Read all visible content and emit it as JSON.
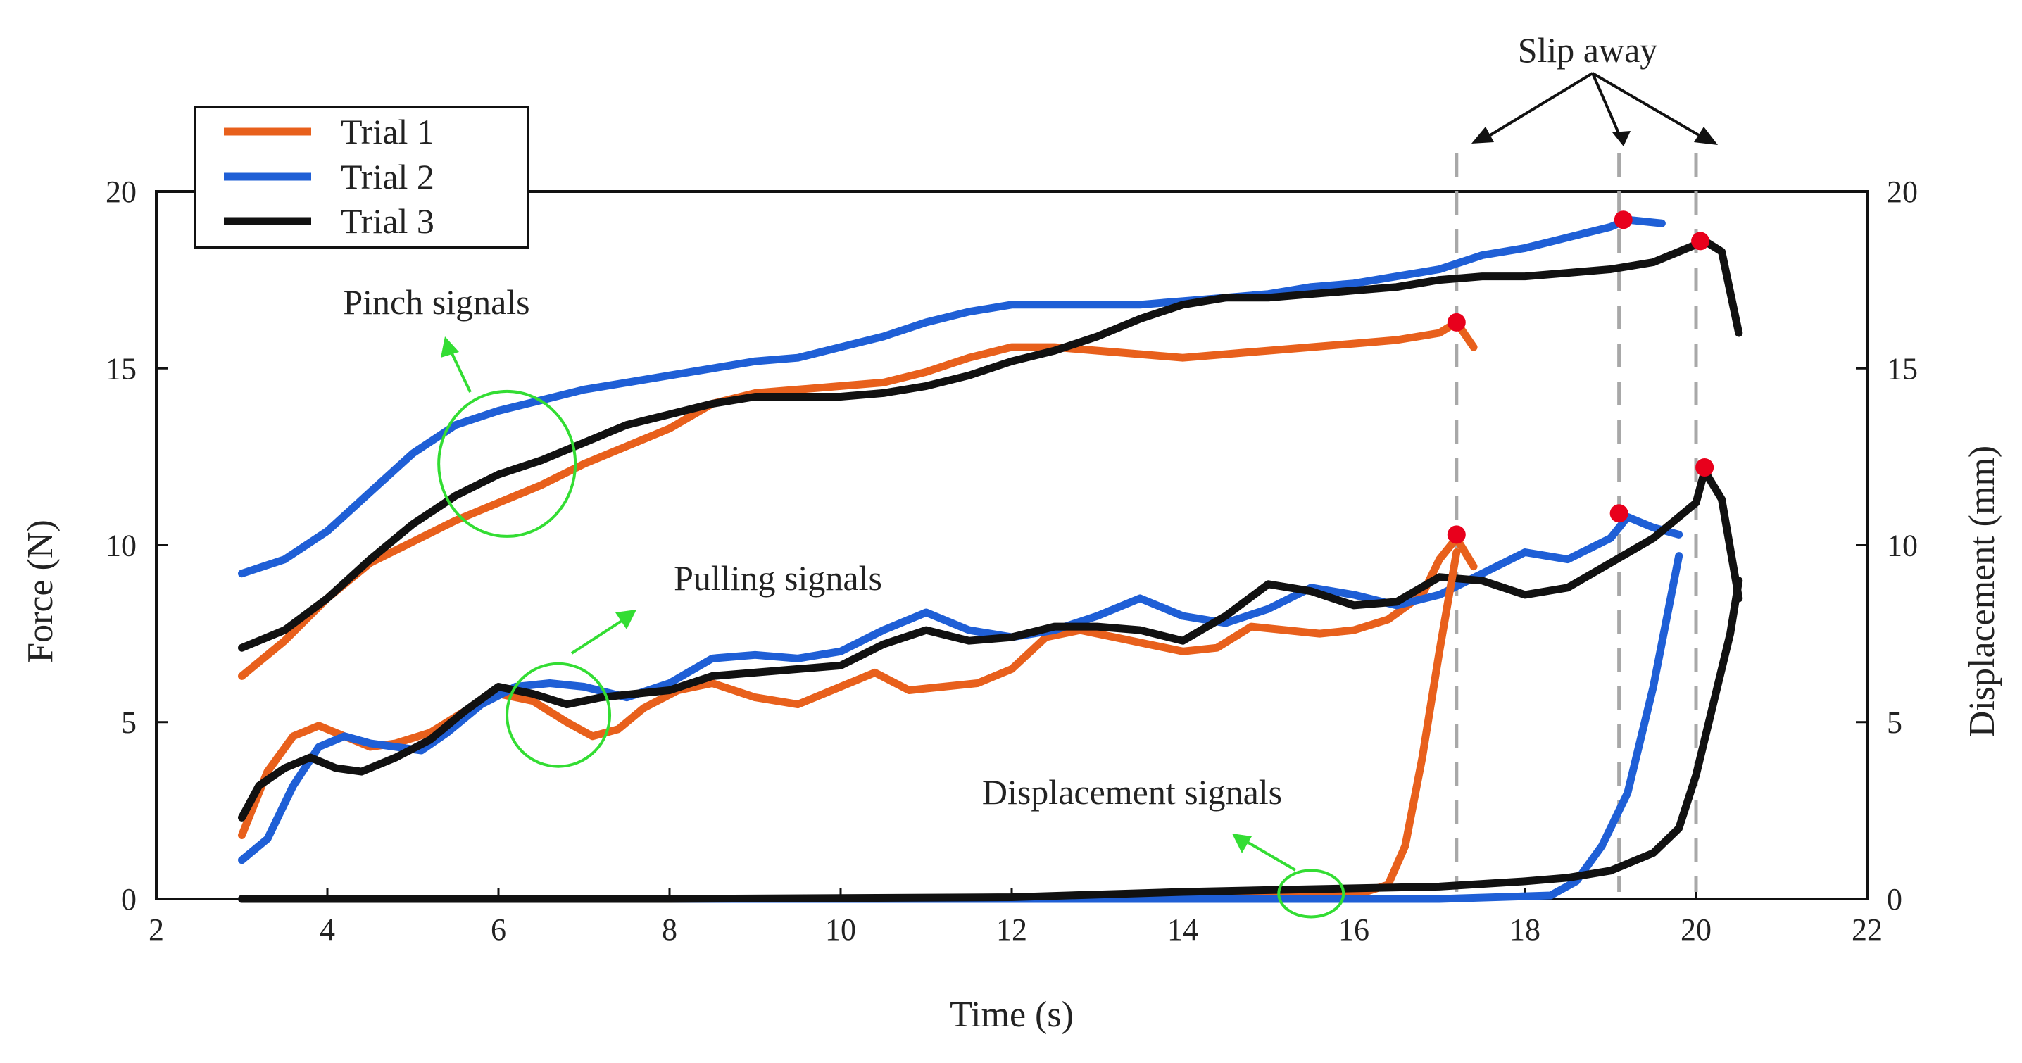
{
  "chart_data": {
    "type": "line",
    "xlabel": "Time (s)",
    "ylabel_left": "Force (N)",
    "ylabel_right": "Displacement (mm)",
    "xlim": [
      2,
      22
    ],
    "ylim_left": [
      0,
      20
    ],
    "ylim_right": [
      0,
      20
    ],
    "x_ticks": [
      2,
      4,
      6,
      8,
      10,
      12,
      14,
      16,
      18,
      20,
      22
    ],
    "y_ticks_left": [
      0,
      5,
      10,
      15,
      20
    ],
    "y_ticks_right": [
      0,
      5,
      10,
      15,
      20
    ],
    "legend": {
      "position": "top-left",
      "entries": [
        {
          "label": "Trial 1",
          "color": "#E8601C"
        },
        {
          "label": "Trial 2",
          "color": "#1F5FD6"
        },
        {
          "label": "Trial 3",
          "color": "#111111"
        }
      ]
    },
    "series": [
      {
        "name": "Trial 1 pinch",
        "group": "Pinch signals",
        "color": "#E8601C",
        "x": [
          3.0,
          3.5,
          4.0,
          4.5,
          5.0,
          5.5,
          6.0,
          6.5,
          7.0,
          7.5,
          8.0,
          8.5,
          9.0,
          9.5,
          10.0,
          10.5,
          11.0,
          11.5,
          12.0,
          12.5,
          13.0,
          13.5,
          14.0,
          14.5,
          15.0,
          15.5,
          16.0,
          16.5,
          17.0,
          17.2,
          17.4
        ],
        "y": [
          6.3,
          7.3,
          8.5,
          9.5,
          10.1,
          10.7,
          11.2,
          11.7,
          12.3,
          12.8,
          13.3,
          14.0,
          14.3,
          14.4,
          14.5,
          14.6,
          14.9,
          15.3,
          15.6,
          15.6,
          15.5,
          15.4,
          15.3,
          15.4,
          15.5,
          15.6,
          15.7,
          15.8,
          16.0,
          16.3,
          15.6
        ]
      },
      {
        "name": "Trial 2 pinch",
        "group": "Pinch signals",
        "color": "#1F5FD6",
        "x": [
          3.0,
          3.5,
          4.0,
          4.5,
          5.0,
          5.5,
          6.0,
          6.5,
          7.0,
          7.5,
          8.0,
          8.5,
          9.0,
          9.5,
          10.0,
          10.5,
          11.0,
          11.5,
          12.0,
          12.5,
          13.0,
          13.5,
          14.0,
          14.5,
          15.0,
          15.5,
          16.0,
          16.5,
          17.0,
          17.5,
          18.0,
          18.5,
          19.0,
          19.2,
          19.6
        ],
        "y": [
          9.2,
          9.6,
          10.4,
          11.5,
          12.6,
          13.4,
          13.8,
          14.1,
          14.4,
          14.6,
          14.8,
          15.0,
          15.2,
          15.3,
          15.6,
          15.9,
          16.3,
          16.6,
          16.8,
          16.8,
          16.8,
          16.8,
          16.9,
          17.0,
          17.1,
          17.3,
          17.4,
          17.6,
          17.8,
          18.2,
          18.4,
          18.7,
          19.0,
          19.2,
          19.1
        ]
      },
      {
        "name": "Trial 3 pinch",
        "group": "Pinch signals",
        "color": "#111111",
        "x": [
          3.0,
          3.5,
          4.0,
          4.5,
          5.0,
          5.5,
          6.0,
          6.5,
          7.0,
          7.5,
          8.0,
          8.5,
          9.0,
          9.5,
          10.0,
          10.5,
          11.0,
          11.5,
          12.0,
          12.5,
          13.0,
          13.5,
          14.0,
          14.5,
          15.0,
          15.5,
          16.0,
          16.5,
          17.0,
          17.5,
          18.0,
          18.5,
          19.0,
          19.5,
          20.0,
          20.1,
          20.3,
          20.5
        ],
        "y": [
          7.1,
          7.6,
          8.5,
          9.6,
          10.6,
          11.4,
          12.0,
          12.4,
          12.9,
          13.4,
          13.7,
          14.0,
          14.2,
          14.2,
          14.2,
          14.3,
          14.5,
          14.8,
          15.2,
          15.5,
          15.9,
          16.4,
          16.8,
          17.0,
          17.0,
          17.1,
          17.2,
          17.3,
          17.5,
          17.6,
          17.6,
          17.7,
          17.8,
          18.0,
          18.5,
          18.6,
          18.3,
          16.0
        ]
      },
      {
        "name": "Trial 1 pulling",
        "group": "Pulling signals",
        "color": "#E8601C",
        "x": [
          3.0,
          3.3,
          3.6,
          3.9,
          4.2,
          4.5,
          4.8,
          5.2,
          5.6,
          6.0,
          6.4,
          6.8,
          7.1,
          7.4,
          7.7,
          8.1,
          8.5,
          9.0,
          9.5,
          10.0,
          10.4,
          10.8,
          11.2,
          11.6,
          12.0,
          12.4,
          12.8,
          13.2,
          13.6,
          14.0,
          14.4,
          14.8,
          15.2,
          15.6,
          16.0,
          16.4,
          16.8,
          17.0,
          17.2,
          17.4
        ],
        "y": [
          1.8,
          3.6,
          4.6,
          4.9,
          4.6,
          4.3,
          4.4,
          4.7,
          5.3,
          5.8,
          5.6,
          5.0,
          4.6,
          4.8,
          5.4,
          5.9,
          6.1,
          5.7,
          5.5,
          6.0,
          6.4,
          5.9,
          6.0,
          6.1,
          6.5,
          7.4,
          7.6,
          7.4,
          7.2,
          7.0,
          7.1,
          7.7,
          7.6,
          7.5,
          7.6,
          7.9,
          8.6,
          9.6,
          10.2,
          9.4
        ]
      },
      {
        "name": "Trial 2 pulling",
        "group": "Pulling signals",
        "color": "#1F5FD6",
        "x": [
          3.0,
          3.3,
          3.6,
          3.9,
          4.2,
          4.5,
          4.8,
          5.1,
          5.4,
          5.8,
          6.2,
          6.6,
          7.0,
          7.5,
          8.0,
          8.5,
          9.0,
          9.5,
          10.0,
          10.5,
          11.0,
          11.5,
          12.0,
          12.5,
          13.0,
          13.5,
          14.0,
          14.5,
          15.0,
          15.5,
          16.0,
          16.5,
          17.0,
          17.5,
          18.0,
          18.5,
          19.0,
          19.2,
          19.5,
          19.8
        ],
        "y": [
          1.1,
          1.7,
          3.2,
          4.3,
          4.6,
          4.4,
          4.3,
          4.2,
          4.7,
          5.5,
          6.0,
          6.1,
          6.0,
          5.7,
          6.1,
          6.8,
          6.9,
          6.8,
          7.0,
          7.6,
          8.1,
          7.6,
          7.4,
          7.6,
          8.0,
          8.5,
          8.0,
          7.8,
          8.2,
          8.8,
          8.6,
          8.3,
          8.6,
          9.2,
          9.8,
          9.6,
          10.2,
          10.8,
          10.5,
          10.3
        ]
      },
      {
        "name": "Trial 3 pulling",
        "group": "Pulling signals",
        "color": "#111111",
        "x": [
          3.0,
          3.2,
          3.5,
          3.8,
          4.1,
          4.4,
          4.8,
          5.2,
          5.6,
          6.0,
          6.4,
          6.8,
          7.2,
          7.6,
          8.0,
          8.5,
          9.0,
          9.5,
          10.0,
          10.5,
          11.0,
          11.5,
          12.0,
          12.5,
          13.0,
          13.5,
          14.0,
          14.5,
          15.0,
          15.5,
          16.0,
          16.5,
          17.0,
          17.5,
          18.0,
          18.5,
          19.0,
          19.5,
          20.0,
          20.1,
          20.3,
          20.5
        ],
        "y": [
          2.3,
          3.2,
          3.7,
          4.0,
          3.7,
          3.6,
          4.0,
          4.5,
          5.3,
          6.0,
          5.8,
          5.5,
          5.7,
          5.8,
          5.9,
          6.3,
          6.4,
          6.5,
          6.6,
          7.2,
          7.6,
          7.3,
          7.4,
          7.7,
          7.7,
          7.6,
          7.3,
          8.0,
          8.9,
          8.7,
          8.3,
          8.4,
          9.1,
          9.0,
          8.6,
          8.8,
          9.5,
          10.2,
          11.2,
          12.1,
          11.3,
          8.5
        ]
      },
      {
        "name": "Trial 1 displacement",
        "group": "Displacement signals",
        "color": "#E8601C",
        "x": [
          3.0,
          5.0,
          8.0,
          11.0,
          14.0,
          16.0,
          16.4,
          16.6,
          16.8,
          17.0,
          17.2
        ],
        "y": [
          0.0,
          0.0,
          0.0,
          0.0,
          0.05,
          0.1,
          0.4,
          1.5,
          4.0,
          7.0,
          9.8
        ]
      },
      {
        "name": "Trial 2 displacement",
        "group": "Displacement signals",
        "color": "#1F5FD6",
        "x": [
          3.0,
          6.0,
          10.0,
          14.0,
          17.0,
          18.3,
          18.6,
          18.9,
          19.2,
          19.5,
          19.8
        ],
        "y": [
          0.0,
          0.0,
          0.0,
          0.0,
          0.0,
          0.1,
          0.5,
          1.5,
          3.0,
          6.0,
          9.7
        ]
      },
      {
        "name": "Trial 3 displacement",
        "group": "Displacement signals",
        "color": "#111111",
        "x": [
          3.0,
          8.0,
          12.0,
          14.0,
          15.0,
          16.0,
          17.0,
          18.0,
          18.5,
          19.0,
          19.5,
          19.8,
          20.0,
          20.2,
          20.4,
          20.5
        ],
        "y": [
          0.0,
          0.0,
          0.05,
          0.2,
          0.25,
          0.3,
          0.35,
          0.5,
          0.6,
          0.8,
          1.3,
          2.0,
          3.5,
          5.5,
          7.5,
          9.0
        ]
      }
    ],
    "peak_markers": [
      {
        "x": 17.2,
        "y": 16.3
      },
      {
        "x": 19.15,
        "y": 19.2
      },
      {
        "x": 20.05,
        "y": 18.6
      },
      {
        "x": 17.2,
        "y": 10.3
      },
      {
        "x": 19.1,
        "y": 10.9
      },
      {
        "x": 20.1,
        "y": 12.2
      }
    ],
    "slip_lines_x": [
      17.2,
      19.1,
      20.0
    ],
    "annotations": {
      "slip_away": "Slip away",
      "pinch_signals": "Pinch signals",
      "pulling_signals": "Pulling signals",
      "displacement_signals": "Displacement signals"
    },
    "colors": {
      "trial1": "#E8601C",
      "trial2": "#1F5FD6",
      "trial3": "#111111",
      "marker": "#E8001C",
      "highlight": "#33DD33",
      "slip_line": "#A8A8A8"
    }
  }
}
